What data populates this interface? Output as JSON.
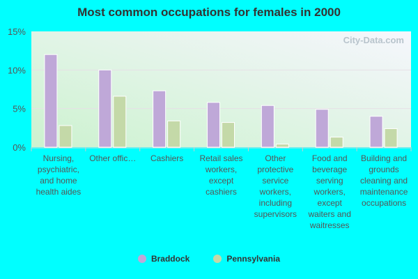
{
  "chart_data": {
    "type": "bar",
    "title": "Most common occupations for females in 2000",
    "categories": [
      "Nursing, psychiatric, and home health aides",
      "Other offic…",
      "Cashiers",
      "Retail sales workers, except cashiers",
      "Other protective service workers, including supervisors",
      "Food and beverage serving workers, except waiters and waitresses",
      "Building and grounds cleaning and maintenance occupations"
    ],
    "series": [
      {
        "name": "Braddock",
        "color": "#bfa8d8",
        "values": [
          12.0,
          10.0,
          7.3,
          5.8,
          5.4,
          4.9,
          4.0
        ]
      },
      {
        "name": "Pennsylvania",
        "color": "#c4d9a8",
        "values": [
          2.8,
          6.6,
          3.4,
          3.2,
          0.4,
          1.3,
          2.4
        ]
      }
    ],
    "yticks": [
      "0%",
      "5%",
      "10%",
      "15%"
    ],
    "ylim": [
      0,
      15
    ],
    "grid": true,
    "legend": "bottom",
    "watermark": "City-Data.com"
  }
}
